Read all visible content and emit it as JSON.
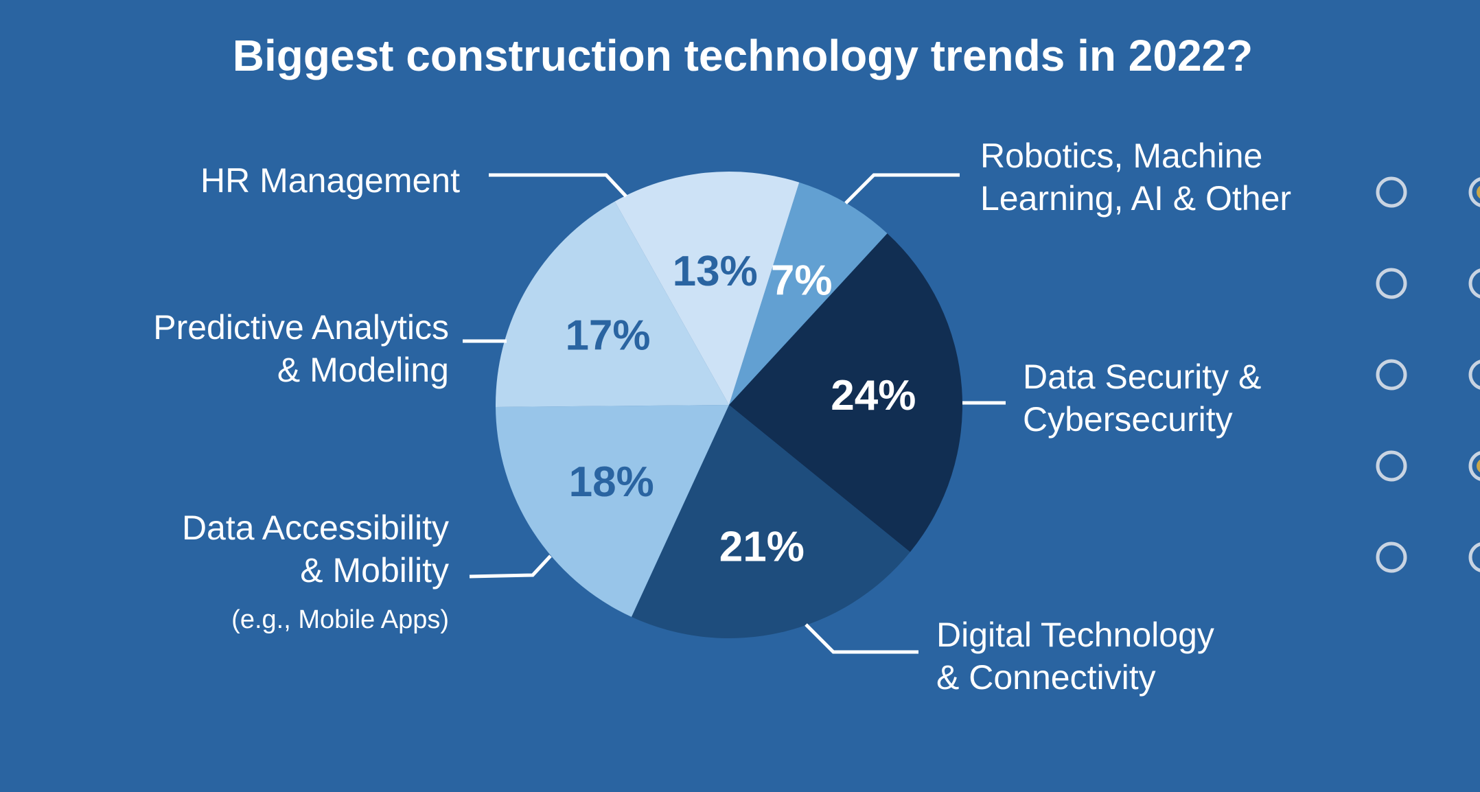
{
  "chart_data": {
    "type": "pie",
    "title": "Biggest construction technology trends in 2022?",
    "slices": [
      {
        "name": "Robotics, Machine Learning, AI & Other",
        "lines": [
          "Robotics, Machine",
          "Learning, AI & Other"
        ],
        "value": 7,
        "label": "7%",
        "color": "#62a0d2",
        "label_color": "#ffffff"
      },
      {
        "name": "Data Security & Cybersecurity",
        "lines": [
          "Data Security &",
          "Cybersecurity"
        ],
        "value": 24,
        "label": "24%",
        "color": "#112e52",
        "label_color": "#ffffff"
      },
      {
        "name": "Digital Technology & Connectivity",
        "lines": [
          "Digital Technology",
          "& Connectivity"
        ],
        "value": 21,
        "label": "21%",
        "color": "#1e4d7d",
        "label_color": "#ffffff"
      },
      {
        "name": "Data Accessibility & Mobility",
        "lines": [
          "Data Accessibility",
          "& Mobility"
        ],
        "note": "(e.g., Mobile Apps)",
        "value": 18,
        "label": "18%",
        "color": "#98c5e9",
        "label_color": "#2a64a1"
      },
      {
        "name": "Predictive Analytics & Modeling",
        "lines": [
          "Predictive Analytics",
          "& Modeling"
        ],
        "value": 17,
        "label": "17%",
        "color": "#b7d7f1",
        "label_color": "#2a64a1"
      },
      {
        "name": "HR Management",
        "lines": [
          "HR Management"
        ],
        "value": 13,
        "label": "13%",
        "color": "#cde2f6",
        "label_color": "#2a64a1"
      }
    ],
    "legend": "none"
  },
  "side_controls": {
    "rows": 5,
    "selected_second_column": [
      0,
      3
    ]
  },
  "colors": {
    "background": "#2a64a1",
    "text": "#ffffff"
  }
}
